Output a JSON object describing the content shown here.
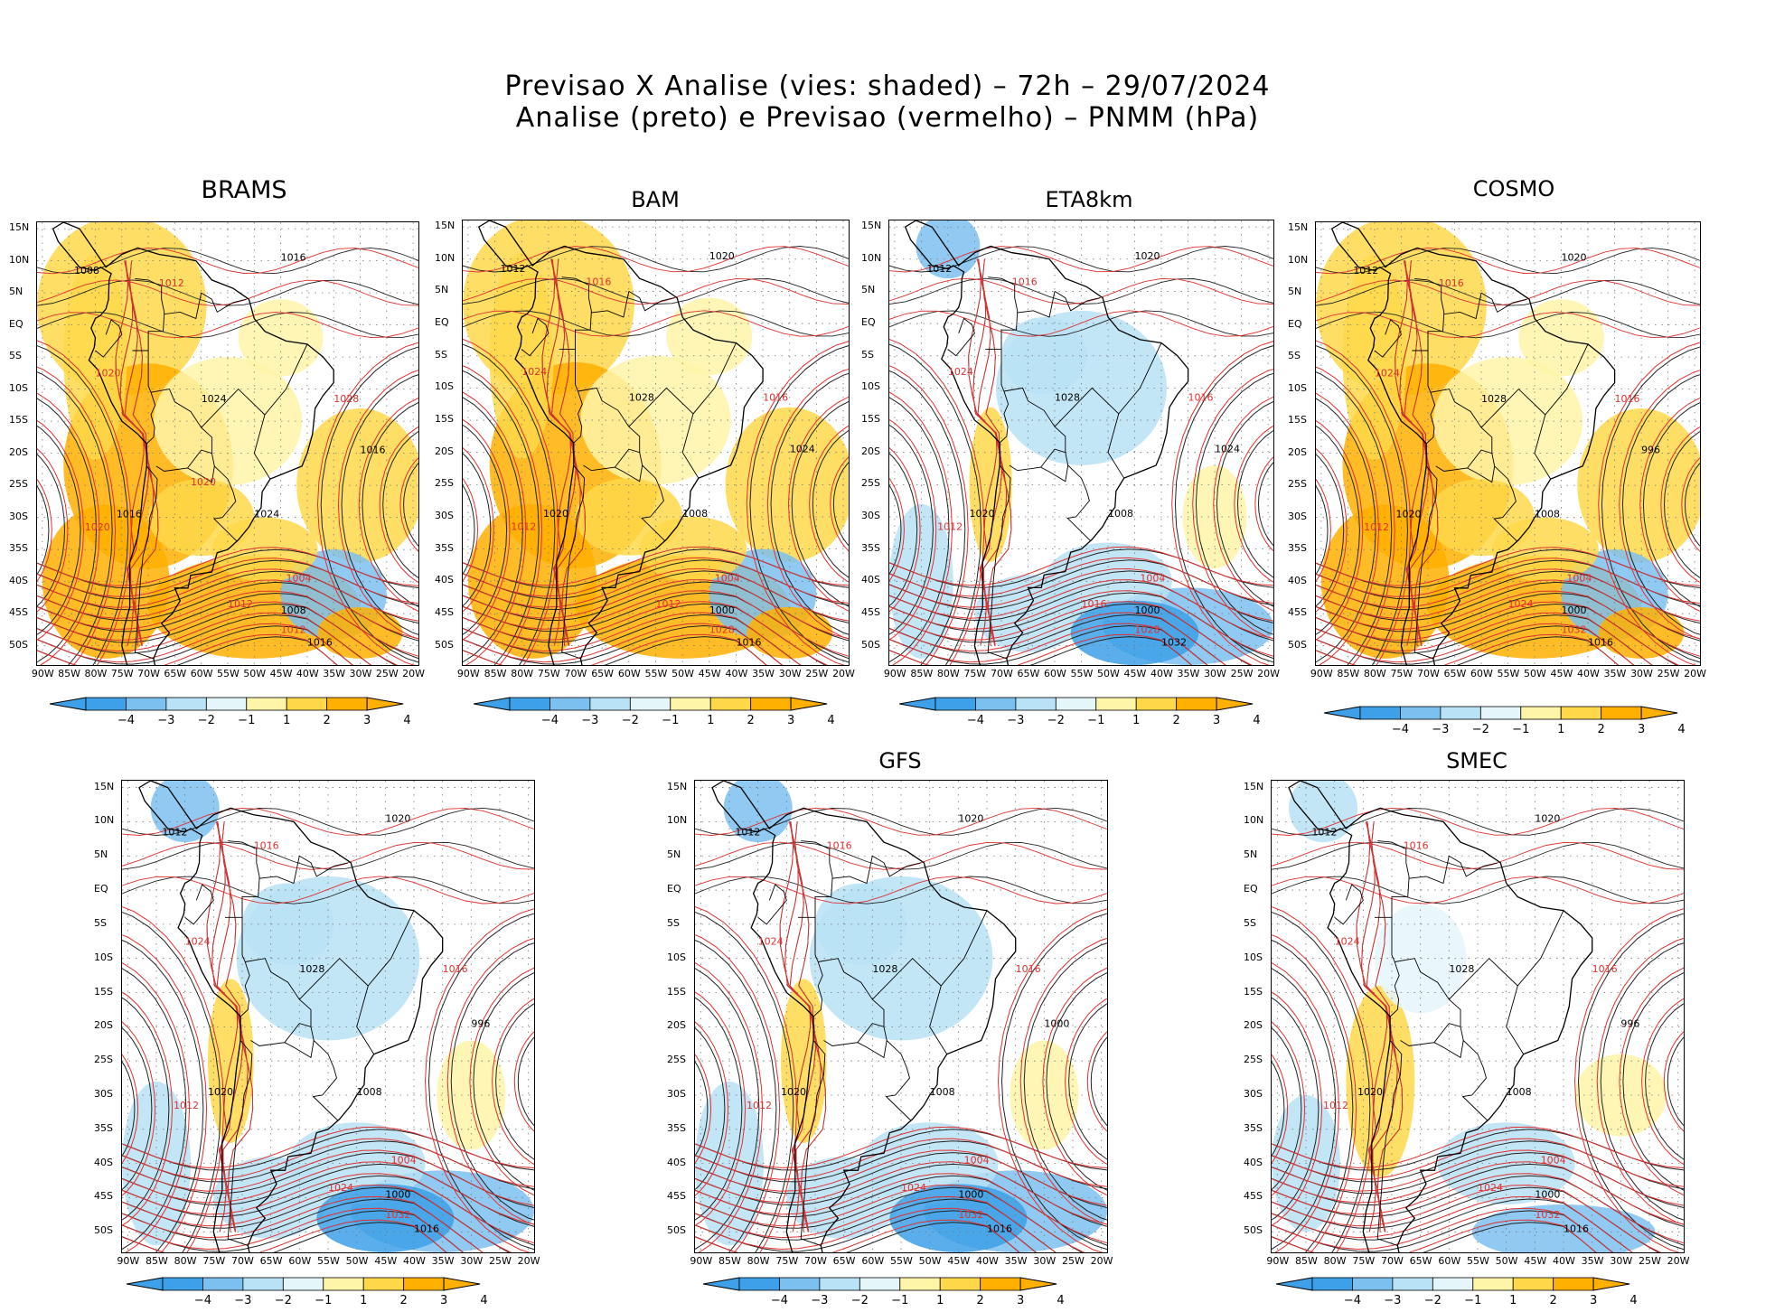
{
  "header": {
    "line1": "Previsao X Analise (vies: shaded) – 72h – 29/07/2024",
    "line2": "Analise (preto) e Previsao (vermelho) – PNMM (hPa)"
  },
  "axes": {
    "lat_labels": [
      "15N",
      "10N",
      "5N",
      "EQ",
      "5S",
      "10S",
      "15S",
      "20S",
      "25S",
      "30S",
      "35S",
      "40S",
      "45S",
      "50S"
    ],
    "lon_labels": [
      "90W",
      "85W",
      "80W",
      "75W",
      "70W",
      "65W",
      "60W",
      "55W",
      "50W",
      "45W",
      "40W",
      "35W",
      "30W",
      "25W",
      "20W"
    ]
  },
  "colorbar": {
    "labels": [
      "−4",
      "−3",
      "−2",
      "−1",
      "1",
      "2",
      "3",
      "4"
    ],
    "colors": [
      "#3da0e8",
      "#7cc0f0",
      "#b9e2f6",
      "#e5f6fb",
      "#ffffff",
      "#fff5a8",
      "#ffd84a",
      "#ffb000"
    ]
  },
  "panels": [
    {
      "title": "BRAMS",
      "bias": "warm",
      "labels": [
        "1008",
        "1012",
        "1016",
        "1020",
        "1024",
        "1028",
        "1016",
        "1020",
        "1024",
        "1004",
        "1008",
        "1012",
        "1016",
        "1012",
        "1016",
        "1020"
      ]
    },
    {
      "title": "BAM",
      "bias": "warm",
      "labels": [
        "1012",
        "1016",
        "1020",
        "1024",
        "1028",
        "1016",
        "1020",
        "1012",
        "1008",
        "1004",
        "1000",
        "1028",
        "1016",
        "1012",
        "1024"
      ]
    },
    {
      "title": "ETA8km",
      "bias": "cool",
      "labels": [
        "1012",
        "1016",
        "1020",
        "1024",
        "1028",
        "1016",
        "1020",
        "1012",
        "1008",
        "1004",
        "1000",
        "1028",
        "1032",
        "1016",
        "1024"
      ]
    },
    {
      "title": "COSMO",
      "bias": "warm",
      "labels": [
        "1012",
        "1016",
        "1020",
        "1024",
        "1028",
        "1016",
        "1020",
        "1012",
        "1008",
        "1004",
        "1000",
        "1032",
        "1016",
        "1024",
        "996"
      ]
    },
    {
      "title": "",
      "bias": "cool",
      "labels": [
        "1012",
        "1016",
        "1020",
        "1024",
        "1028",
        "1016",
        "1020",
        "1012",
        "1008",
        "1004",
        "1000",
        "1032",
        "1016",
        "1024",
        "996"
      ]
    },
    {
      "title": "GFS",
      "bias": "cool",
      "labels": [
        "1012",
        "1016",
        "1020",
        "1024",
        "1028",
        "1016",
        "1020",
        "1012",
        "1008",
        "1004",
        "1000",
        "1032",
        "1016",
        "1024",
        "1000"
      ]
    },
    {
      "title": "SMEC",
      "bias": "mixed",
      "labels": [
        "1012",
        "1016",
        "1020",
        "1024",
        "1028",
        "1016",
        "1020",
        "1012",
        "1008",
        "1004",
        "1000",
        "1032",
        "1016",
        "1024",
        "996"
      ]
    }
  ]
}
